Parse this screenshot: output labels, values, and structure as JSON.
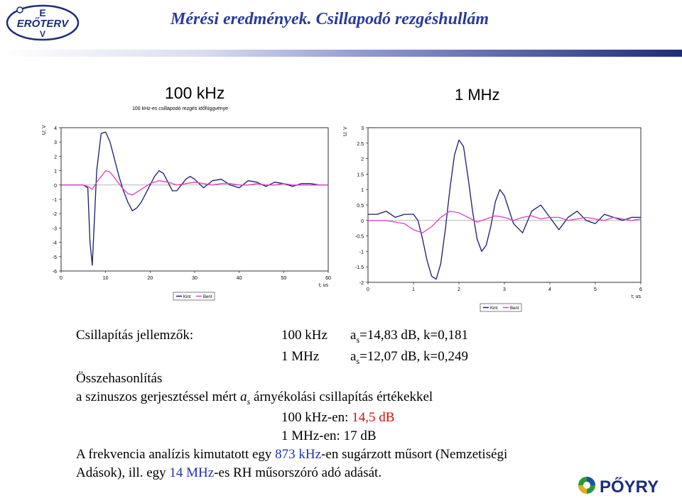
{
  "header": {
    "title": "Mérési eredmények. Csillapodó rezgéshullám",
    "logo_text": "ERŐTERV",
    "logo_e_top": "E",
    "logo_v_bottom": "V"
  },
  "chart_titles": {
    "left_title": "100 kHz",
    "left_subtitle": "100 kHz-es csillapodó rezgés időfüggvénye",
    "right_title": "1 MHz"
  },
  "chart_data": [
    {
      "type": "line",
      "ylabel": "U; V",
      "xlabel": "t; us",
      "xlim": [
        0,
        60
      ],
      "ylim": [
        -6,
        4
      ],
      "xticks": [
        "0",
        "10",
        "20",
        "30",
        "40",
        "50",
        "60"
      ],
      "yticks": [
        "4",
        "3",
        "2",
        "1",
        "0",
        "-1",
        "-2",
        "-3",
        "-4",
        "-5",
        "-6"
      ],
      "legend_position": "bottom-left",
      "series": [
        {
          "name": "Kint",
          "color": "#1a1a6e",
          "x": [
            0,
            5,
            6,
            6.5,
            7,
            8,
            9,
            10,
            11,
            12,
            13,
            14,
            15,
            16,
            17,
            18,
            19,
            20,
            21,
            22,
            23,
            24,
            25,
            26,
            27,
            28,
            29,
            30,
            32,
            34,
            36,
            38,
            40,
            42,
            44,
            46,
            48,
            50,
            52,
            54,
            56,
            58,
            60
          ],
          "y": [
            0,
            0,
            -0.2,
            -4,
            -5.6,
            1,
            3.6,
            3.7,
            3.0,
            1.8,
            0.6,
            -0.4,
            -1.2,
            -1.8,
            -1.6,
            -1.2,
            -0.6,
            0,
            0.6,
            1.0,
            0.8,
            0.2,
            -0.4,
            -0.4,
            0,
            0.4,
            0.6,
            0.4,
            -0.2,
            0.3,
            0.4,
            0,
            -0.2,
            0.3,
            0.2,
            -0.1,
            0.2,
            0.1,
            -0.1,
            0.1,
            0.1,
            0,
            0
          ]
        },
        {
          "name": "Bent",
          "color": "#e040c0",
          "x": [
            0,
            5,
            6,
            7,
            8,
            9,
            10,
            11,
            12,
            13,
            14,
            15,
            16,
            17,
            18,
            20,
            22,
            24,
            26,
            28,
            30,
            32,
            34,
            36,
            38,
            40,
            42,
            44,
            46,
            48,
            50,
            52,
            54,
            56,
            58,
            60
          ],
          "y": [
            0,
            0,
            -0.1,
            -0.3,
            0.2,
            0.6,
            1.0,
            0.9,
            0.5,
            0.1,
            -0.3,
            -0.6,
            -0.7,
            -0.5,
            -0.3,
            0.1,
            0.3,
            0.2,
            0,
            0.1,
            0.2,
            0.1,
            0,
            0.1,
            0.1,
            0,
            0,
            0.1,
            0,
            0,
            0.1,
            0,
            0,
            0,
            0,
            0
          ]
        }
      ]
    },
    {
      "type": "line",
      "ylabel": "U; V",
      "xlabel": "t; us",
      "xlim": [
        0,
        6
      ],
      "ylim": [
        -2,
        3
      ],
      "xticks": [
        "0",
        "1",
        "2",
        "3",
        "4",
        "5",
        "6"
      ],
      "yticks": [
        "3",
        "2.5",
        "2",
        "1.5",
        "1",
        "0.5",
        "0",
        "-0.5",
        "-1",
        "-1.5",
        "-2"
      ],
      "legend_position": "bottom-right",
      "series": [
        {
          "name": "Kint",
          "color": "#1a1a6e",
          "x": [
            0,
            0.2,
            0.4,
            0.6,
            0.8,
            1.0,
            1.1,
            1.2,
            1.3,
            1.4,
            1.5,
            1.6,
            1.7,
            1.8,
            1.9,
            2.0,
            2.1,
            2.2,
            2.3,
            2.4,
            2.5,
            2.6,
            2.7,
            2.8,
            2.9,
            3.0,
            3.2,
            3.4,
            3.6,
            3.8,
            4.0,
            4.2,
            4.4,
            4.6,
            4.8,
            5.0,
            5.2,
            5.4,
            5.6,
            5.8,
            6.0
          ],
          "y": [
            0.2,
            0.2,
            0.3,
            0.1,
            0.2,
            0.2,
            0.0,
            -0.6,
            -1.3,
            -1.8,
            -1.9,
            -1.4,
            -0.3,
            1.0,
            2.1,
            2.6,
            2.4,
            1.4,
            0.3,
            -0.6,
            -1.0,
            -0.8,
            -0.2,
            0.6,
            1.0,
            0.8,
            -0.1,
            -0.4,
            0.3,
            0.5,
            0.1,
            -0.3,
            0.1,
            0.3,
            0.0,
            -0.1,
            0.2,
            0.1,
            0.0,
            0.1,
            0.1
          ]
        },
        {
          "name": "Bent",
          "color": "#e040c0",
          "x": [
            0,
            0.2,
            0.4,
            0.6,
            0.8,
            1.0,
            1.2,
            1.4,
            1.6,
            1.8,
            2.0,
            2.2,
            2.4,
            2.6,
            2.8,
            3.0,
            3.2,
            3.4,
            3.6,
            3.8,
            4.0,
            4.2,
            4.4,
            4.6,
            4.8,
            5.0,
            5.2,
            5.4,
            5.6,
            5.8,
            6.0
          ],
          "y": [
            0,
            0,
            0,
            -0.05,
            -0.1,
            -0.3,
            -0.4,
            -0.2,
            0.1,
            0.3,
            0.25,
            0.1,
            -0.05,
            0.05,
            0.15,
            0.1,
            0.0,
            0.1,
            0.15,
            0.05,
            0.1,
            0.1,
            0.0,
            0.05,
            0.1,
            0.05,
            0.0,
            0.1,
            0.05,
            0.0,
            0.05
          ]
        }
      ]
    }
  ],
  "results": {
    "label": "Csillapítás jellemzők:",
    "row1_freq": "100 kHz",
    "row1_a": "a",
    "row1_sub": "s",
    "row1_vals": "=14,83 dB,  k=0,181",
    "row2_freq": "1 MHz",
    "row2_a": "a",
    "row2_sub": "s",
    "row2_vals": "=12,07 dB,  k=0,249",
    "compare_heading": "Összehasonlítás",
    "compare_line_a": "a szinuszos gerjesztéssel mért ",
    "compare_line_var": "a",
    "compare_line_sub": "s",
    "compare_line_b": " árnyékolási csillapítás értékekkel",
    "khz_label": "100 kHz-en: ",
    "khz_value": "14,5 dB",
    "mhz_label": "1 MHz-en:   17 dB",
    "analysis_1a": "A frekvencia analízis kimutatott egy ",
    "analysis_1b": "873 kHz",
    "analysis_1c": "-en sugárzott műsort (Nemzetiségi",
    "analysis_2a": "Adások), ill. egy ",
    "analysis_2b": "14 MHz",
    "analysis_2c": "-es RH műsorszóró adó adását."
  },
  "footer": {
    "brand": "PŐYRY"
  }
}
